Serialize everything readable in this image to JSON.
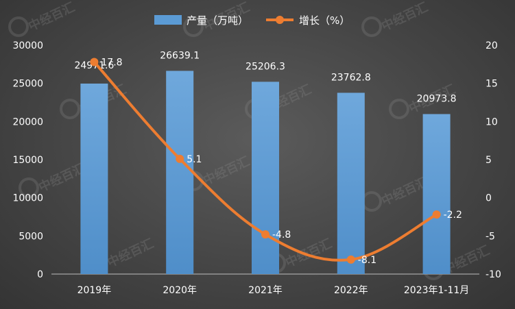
{
  "chart_data": {
    "type": "bar",
    "categories": [
      "2019年",
      "2020年",
      "2021年",
      "2022年",
      "2023年1-11月"
    ],
    "series": [
      {
        "name": "产量（万吨）",
        "type": "bar",
        "axis": "left",
        "color": "#5b9bd5",
        "values": [
          24971.6,
          26639.1,
          25206.3,
          23762.8,
          20973.8
        ],
        "labels": [
          "24971.6",
          "26639.1",
          "25206.3",
          "23762.8",
          "20973.8"
        ]
      },
      {
        "name": "增长（%）",
        "type": "line",
        "axis": "right",
        "color": "#ed7d31",
        "values": [
          17.8,
          5.1,
          -4.8,
          -8.1,
          -2.2
        ],
        "labels": [
          "17.8",
          "5.1",
          "-4.8",
          "-8.1",
          "-2.2"
        ]
      }
    ],
    "y_left": {
      "min": 0,
      "max": 30000,
      "ticks": [
        "0",
        "5000",
        "10000",
        "15000",
        "20000",
        "25000",
        "30000"
      ]
    },
    "y_right": {
      "min": -10,
      "max": 20,
      "ticks": [
        "-10",
        "-5",
        "0",
        "5",
        "10",
        "15",
        "20"
      ]
    },
    "legend_position": "top-center",
    "grid": false,
    "title": "",
    "xlabel": "",
    "ylabel": ""
  },
  "watermark": {
    "text": "中经百汇"
  }
}
